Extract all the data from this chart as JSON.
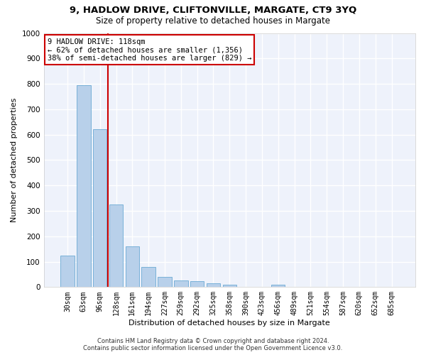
{
  "title1": "9, HADLOW DRIVE, CLIFTONVILLE, MARGATE, CT9 3YQ",
  "title2": "Size of property relative to detached houses in Margate",
  "xlabel": "Distribution of detached houses by size in Margate",
  "ylabel": "Number of detached properties",
  "categories": [
    "30sqm",
    "63sqm",
    "96sqm",
    "128sqm",
    "161sqm",
    "194sqm",
    "227sqm",
    "259sqm",
    "292sqm",
    "325sqm",
    "358sqm",
    "390sqm",
    "423sqm",
    "456sqm",
    "489sqm",
    "521sqm",
    "554sqm",
    "587sqm",
    "620sqm",
    "652sqm",
    "685sqm"
  ],
  "values": [
    125,
    795,
    620,
    325,
    160,
    78,
    40,
    27,
    22,
    15,
    10,
    0,
    0,
    10,
    0,
    0,
    0,
    0,
    0,
    0,
    0
  ],
  "bar_color": "#b8d0ea",
  "bar_edge_color": "#6aaad4",
  "vline_color": "#cc0000",
  "annotation_text": "9 HADLOW DRIVE: 118sqm\n← 62% of detached houses are smaller (1,356)\n38% of semi-detached houses are larger (829) →",
  "annotation_box_color": "#ffffff",
  "annotation_box_edge": "#cc0000",
  "ylim": [
    0,
    1000
  ],
  "yticks": [
    0,
    100,
    200,
    300,
    400,
    500,
    600,
    700,
    800,
    900,
    1000
  ],
  "footer1": "Contains HM Land Registry data © Crown copyright and database right 2024.",
  "footer2": "Contains public sector information licensed under the Open Government Licence v3.0.",
  "bg_color": "#eef2fb",
  "grid_color": "#ffffff",
  "title1_fontsize": 9.5,
  "title2_fontsize": 8.5,
  "tick_fontsize": 7,
  "ylabel_fontsize": 8,
  "xlabel_fontsize": 8,
  "footer_fontsize": 6,
  "ann_fontsize": 7.5
}
